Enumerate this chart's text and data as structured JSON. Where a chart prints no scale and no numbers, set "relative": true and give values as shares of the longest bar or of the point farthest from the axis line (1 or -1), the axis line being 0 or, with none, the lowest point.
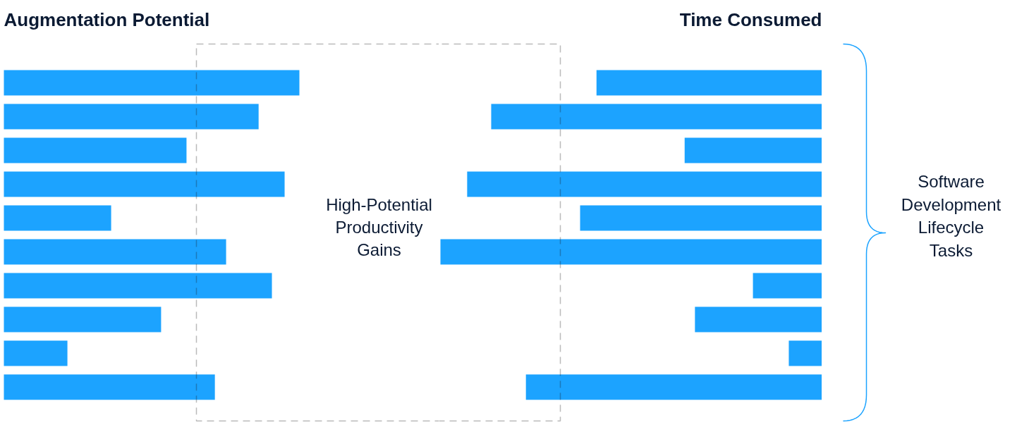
{
  "chart_data": [
    {
      "type": "bar",
      "orientation": "horizontal",
      "relative": true,
      "title": "Augmentation Potential",
      "color": "#1ca3ff",
      "categories": [
        null,
        null,
        null,
        null,
        null,
        null,
        null,
        null,
        null,
        null
      ],
      "values": [
        1,
        0.862,
        0.618,
        0.95,
        0.363,
        0.752,
        0.907,
        0.532,
        0.215,
        0.714
      ],
      "annotations": [
        "High-Potential Productivity Gains"
      ]
    },
    {
      "type": "bar",
      "orientation": "horizontal",
      "relative": true,
      "title": "Time Consumed",
      "color": "#1ca3ff",
      "categories": [
        null,
        null,
        null,
        null,
        null,
        null,
        null,
        null,
        null,
        null
      ],
      "values": [
        0.591,
        0.867,
        0.36,
        0.93,
        0.634,
        1,
        0.181,
        0.333,
        0.087,
        0.776
      ],
      "annotations": [
        "Software Development Lifecycle Tasks"
      ]
    }
  ]
}
